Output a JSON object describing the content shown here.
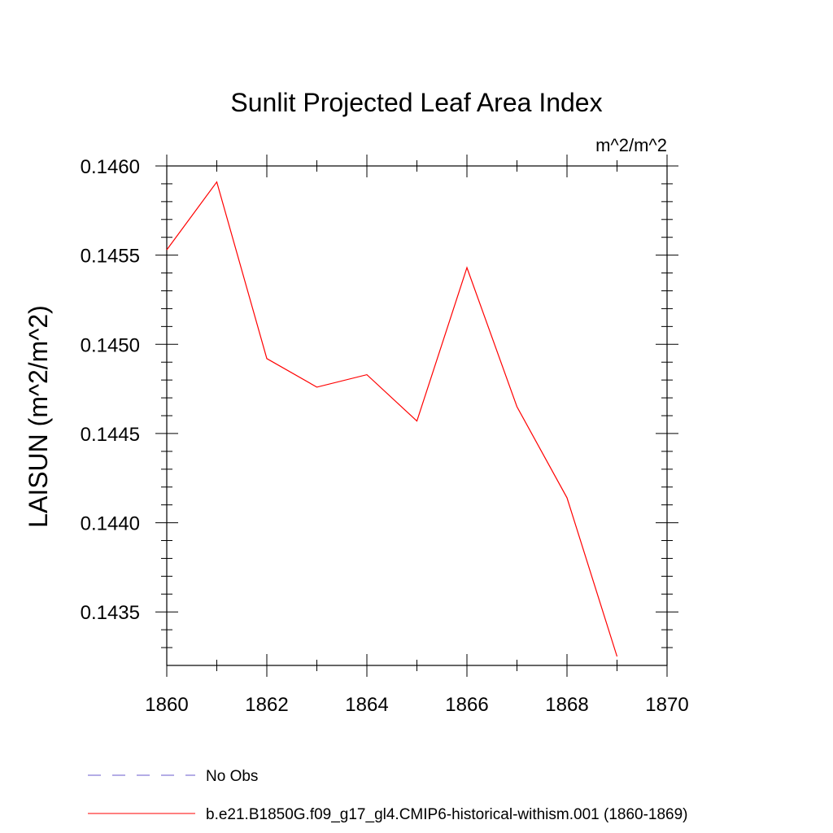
{
  "chart_data": {
    "type": "line",
    "title": "Sunlit Projected Leaf Area Index",
    "units": "m^2/m^2",
    "xlabel": "",
    "ylabel": "LAISUN  (m^2/m^2)",
    "xlim": [
      1860,
      1870
    ],
    "ylim": [
      0.1432,
      0.146
    ],
    "x_ticks": [
      1860,
      1862,
      1864,
      1866,
      1868,
      1870
    ],
    "x_tick_labels": [
      "1860",
      "1862",
      "1864",
      "1866",
      "1868",
      "1870"
    ],
    "x_minor_step": 1,
    "y_ticks": [
      0.1435,
      0.144,
      0.1445,
      0.145,
      0.1455,
      0.146
    ],
    "y_tick_labels": [
      "0.1435",
      "0.1440",
      "0.1445",
      "0.1450",
      "0.1455",
      "0.1460"
    ],
    "y_minor_step": 0.0001,
    "grid": false,
    "legend_position": "bottom-left",
    "series": [
      {
        "name": "No Obs",
        "color": "#6a5acd",
        "style": "dashed",
        "x": [],
        "values": []
      },
      {
        "name": "b.e21.B1850G.f09_g17_gl4.CMIP6-historical-withism.001 (1860-1869)",
        "color": "#ff0000",
        "style": "solid",
        "x": [
          1860,
          1861,
          1862,
          1863,
          1864,
          1865,
          1866,
          1867,
          1868,
          1869
        ],
        "values": [
          0.14553,
          0.14591,
          0.14492,
          0.14476,
          0.14483,
          0.14457,
          0.14543,
          0.14465,
          0.14414,
          0.14325
        ]
      }
    ]
  }
}
